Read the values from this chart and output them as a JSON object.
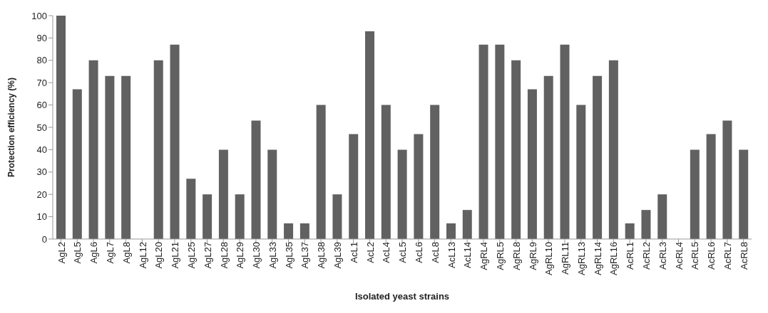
{
  "chart_data": {
    "type": "bar",
    "xlabel": "Isolated yeast strains",
    "ylabel": "Protection efficiency (%)",
    "categories": [
      "AgL2",
      "AgL5",
      "AgL6",
      "AgL7",
      "AgL8",
      "AgL12",
      "AgL20",
      "AgL21",
      "AgL25",
      "AgL27",
      "AgL28",
      "AgL29",
      "AgL30",
      "AgL33",
      "AgL35",
      "AgL37",
      "AgL38",
      "AgL39",
      "AcL1",
      "AcL2",
      "AcL4",
      "AcL5",
      "AcL6",
      "AcL8",
      "AcL13",
      "AcL14",
      "AgRL4",
      "AgRL5",
      "AgRL8",
      "AgRL9",
      "AgRL10",
      "AgRL11",
      "AgRL13",
      "AgRL14",
      "AgRL16",
      "AcRL1",
      "AcRL2",
      "AcRL3",
      "AcRL4",
      "AcRL5",
      "AcRL6",
      "AcRL7",
      "AcRL8"
    ],
    "values": [
      100,
      67,
      80,
      73,
      73,
      0,
      80,
      87,
      27,
      20,
      40,
      20,
      53,
      40,
      7,
      7,
      60,
      20,
      47,
      93,
      60,
      40,
      47,
      60,
      7,
      13,
      87,
      87,
      80,
      67,
      73,
      87,
      60,
      73,
      80,
      7,
      13,
      20,
      0,
      40,
      47,
      53,
      40
    ],
    "color": "#616161",
    "ylim": [
      0,
      100
    ],
    "yticks": [
      0,
      10,
      20,
      30,
      40,
      50,
      60,
      70,
      80,
      90,
      100
    ],
    "grid": false,
    "legend": false
  }
}
